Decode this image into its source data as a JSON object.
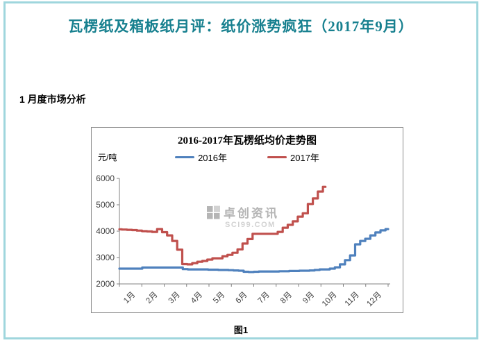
{
  "page": {
    "title": "瓦楞纸及箱板纸月评：纸价涨势疯狂（2017年9月）",
    "title_color": "#17808f",
    "border_color": "#9fd6dd",
    "section_heading": "1  月度市场分析",
    "figure_caption": "图1"
  },
  "watermark": {
    "name": "卓创资讯",
    "site": "SCI99.COM",
    "color": "#b5b5b5",
    "site_color": "#d2d2d2"
  },
  "chart_data": {
    "type": "line",
    "title": "2016-2017年瓦楞纸均价走势图",
    "unit_label": "元/吨",
    "xlabel": "",
    "ylabel": "元/吨",
    "ylim": [
      2000,
      6000
    ],
    "y_ticks": [
      2000,
      3000,
      4000,
      5000,
      6000
    ],
    "x_tick_labels": [
      "1月",
      "2月",
      "3月",
      "4月",
      "5月",
      "6月",
      "7月",
      "8月",
      "9月",
      "10月",
      "11月",
      "12月"
    ],
    "grid": false,
    "legend_position": "top",
    "axis_color": "#808080",
    "series": [
      {
        "name": "2016年",
        "color": "#4f81bd",
        "x_start_month": 0,
        "x_end_month": 12,
        "values": [
          2580,
          2580,
          2580,
          2580,
          2580,
          2620,
          2620,
          2620,
          2620,
          2620,
          2620,
          2620,
          2620,
          2560,
          2550,
          2550,
          2550,
          2550,
          2540,
          2540,
          2530,
          2530,
          2520,
          2510,
          2500,
          2460,
          2450,
          2460,
          2470,
          2470,
          2470,
          2470,
          2480,
          2480,
          2490,
          2490,
          2500,
          2500,
          2510,
          2530,
          2550,
          2550,
          2580,
          2630,
          2740,
          2900,
          3080,
          3500,
          3630,
          3710,
          3840,
          3950,
          4030,
          4080
        ]
      },
      {
        "name": "2017年",
        "color": "#c0504d",
        "x_start_month": 0,
        "x_end_month": 9.2,
        "values": [
          4070,
          4060,
          4050,
          4040,
          4020,
          4000,
          3990,
          3970,
          4080,
          3960,
          3840,
          3630,
          3300,
          2750,
          2740,
          2790,
          2840,
          2870,
          2920,
          2970,
          2970,
          3050,
          3100,
          3180,
          3310,
          3530,
          3700,
          3900,
          3900,
          3900,
          3900,
          3900,
          3970,
          4130,
          4240,
          4370,
          4550,
          4680,
          5030,
          5240,
          5500,
          5680
        ]
      }
    ]
  }
}
